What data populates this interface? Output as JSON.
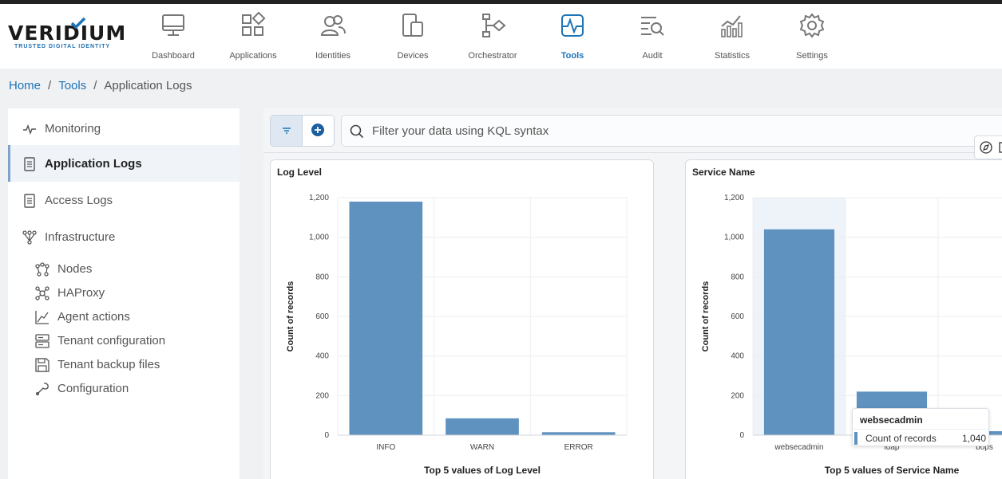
{
  "brand": {
    "name": "VERIDIUM",
    "tagline": "TRUSTED DIGITAL IDENTITY",
    "accent": "#1b73b8"
  },
  "topnav": [
    {
      "label": "Dashboard",
      "icon": "monitor-icon"
    },
    {
      "label": "Applications",
      "icon": "grid-icon"
    },
    {
      "label": "Identities",
      "icon": "users-icon"
    },
    {
      "label": "Devices",
      "icon": "devices-icon"
    },
    {
      "label": "Orchestrator",
      "icon": "flow-icon"
    },
    {
      "label": "Tools",
      "icon": "pulse-icon",
      "active": true
    },
    {
      "label": "Audit",
      "icon": "audit-icon"
    },
    {
      "label": "Statistics",
      "icon": "stats-icon"
    },
    {
      "label": "Settings",
      "icon": "gear-icon"
    }
  ],
  "breadcrumb": {
    "home": "Home",
    "tools": "Tools",
    "current": "Application Logs"
  },
  "sidebar": {
    "items": [
      {
        "label": "Monitoring",
        "icon": "activity-icon"
      },
      {
        "label": "Application Logs",
        "icon": "document-icon",
        "active": true
      },
      {
        "label": "Access Logs",
        "icon": "document-icon"
      },
      {
        "label": "Infrastructure",
        "icon": "network-icon"
      }
    ],
    "sub_items": [
      {
        "label": "Nodes",
        "icon": "nodes-icon"
      },
      {
        "label": "HAProxy",
        "icon": "proxy-icon"
      },
      {
        "label": "Agent actions",
        "icon": "chart-line-icon"
      },
      {
        "label": "Tenant configuration",
        "icon": "server-icon"
      },
      {
        "label": "Tenant backup files",
        "icon": "save-icon"
      },
      {
        "label": "Configuration",
        "icon": "wrench-icon"
      }
    ]
  },
  "query": {
    "placeholder": "Filter your data using KQL syntax",
    "value": ""
  },
  "chart_data": [
    {
      "type": "bar",
      "title": "Log Level",
      "categories": [
        "INFO",
        "WARN",
        "ERROR"
      ],
      "values": [
        1180,
        85,
        15
      ],
      "xlabel": "Top 5 values of Log Level",
      "ylabel": "Count of records",
      "ylim": [
        0,
        1200
      ],
      "yticks": [
        0,
        200,
        400,
        600,
        800,
        1000,
        1200
      ],
      "ytick_labels": [
        "0",
        "200",
        "400",
        "600",
        "800",
        "1,000",
        "1,200"
      ],
      "color": "#6092c0",
      "grid": true
    },
    {
      "type": "bar",
      "title": "Service Name",
      "categories": [
        "websecadmin",
        "ldap",
        "bops"
      ],
      "values": [
        1040,
        220,
        20
      ],
      "xlabel": "Top 5 values of Service Name",
      "ylabel": "Count of records",
      "ylim": [
        0,
        1200
      ],
      "yticks": [
        0,
        200,
        400,
        600,
        800,
        1000,
        1200
      ],
      "ytick_labels": [
        "0",
        "200",
        "400",
        "600",
        "800",
        "1,000",
        "1,200"
      ],
      "color": "#6092c0",
      "grid": true,
      "highlighted": "websecadmin"
    }
  ],
  "tooltip": {
    "title": "websecadmin",
    "label": "Count of records",
    "value": "1,040"
  }
}
